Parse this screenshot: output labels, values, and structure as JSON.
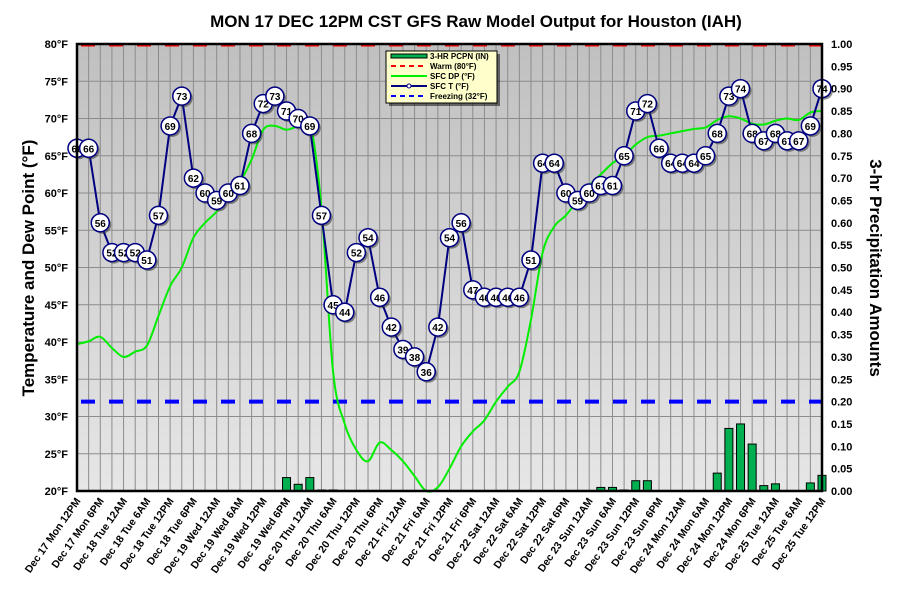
{
  "chart_data": {
    "type": "line",
    "title": "MON 17 DEC 12PM CST GFS Raw Model Output for Houston (IAH)",
    "ylabel": "Temperature and Dew Point (°F)",
    "y2label": "3-hr Precipitation Amounts",
    "ylim": [
      20,
      80
    ],
    "y2lim": [
      0,
      1
    ],
    "grid": true,
    "legend_position": "top-center",
    "yticks": [
      "20°F",
      "25°F",
      "30°F",
      "35°F",
      "40°F",
      "45°F",
      "50°F",
      "55°F",
      "60°F",
      "65°F",
      "70°F",
      "75°F",
      "80°F"
    ],
    "y2ticks": [
      "0.00",
      "0.05",
      "0.10",
      "0.15",
      "0.20",
      "0.25",
      "0.30",
      "0.35",
      "0.40",
      "0.45",
      "0.50",
      "0.55",
      "0.60",
      "0.65",
      "0.70",
      "0.75",
      "0.80",
      "0.85",
      "0.90",
      "0.95",
      "1.00"
    ],
    "xticks": [
      "Dec 17 Mon 12PM",
      "Dec 17 Mon 6PM",
      "Dec 18 Tue 12AM",
      "Dec 18 Tue 6AM",
      "Dec 18 Tue 12PM",
      "Dec 18 Tue 6PM",
      "Dec 19 Wed 12AM",
      "Dec 19 Wed 6AM",
      "Dec 19 Wed 12PM",
      "Dec 19 Wed 6PM",
      "Dec 20 Thu 12AM",
      "Dec 20 Thu 6AM",
      "Dec 20 Thu 12PM",
      "Dec 20 Thu 6PM",
      "Dec 21 Fri 12AM",
      "Dec 21 Fri 6AM",
      "Dec 21 Fri 12PM",
      "Dec 21 Fri 6PM",
      "Dec 22 Sat 12AM",
      "Dec 22 Sat 6AM",
      "Dec 22 Sat 12PM",
      "Dec 22 Sat 6PM",
      "Dec 23 Sun 12AM",
      "Dec 23 Sun 6AM",
      "Dec 23 Sun 12PM",
      "Dec 23 Sun 6PM",
      "Dec 24 Mon 12AM",
      "Dec 24 Mon 6AM",
      "Dec 24 Mon 12PM",
      "Dec 24 Mon 6PM",
      "Dec 25 Tue 12AM",
      "Dec 25 Tue 6AM",
      "Dec 25 Tue 12PM"
    ],
    "legend": [
      "3-HR PCPN (IN)",
      "Warm (80°F)",
      "SFC DP (°F)",
      "SFC T (°F)",
      "Freezing (32°F)"
    ],
    "series": [
      {
        "name": "SFC T (°F)",
        "color": "#000080",
        "values": [
          66,
          66,
          56,
          52,
          52,
          52,
          51,
          57,
          69,
          73,
          62,
          60,
          59,
          60,
          61,
          68,
          72,
          73,
          71,
          70,
          69,
          57,
          45,
          44,
          52,
          54,
          46,
          42,
          39,
          38,
          36,
          42,
          54,
          56,
          47,
          46,
          46,
          46,
          46,
          51,
          64,
          64,
          60,
          59,
          60,
          61,
          61,
          65,
          71,
          72,
          66,
          64,
          64,
          64,
          65,
          68,
          73,
          74,
          68,
          67,
          68,
          67,
          67,
          69,
          74
        ]
      },
      {
        "name": "SFC DP (°F)",
        "color": "#00ee00",
        "values": [
          39.7,
          40.1,
          40.7,
          39.2,
          38.0,
          38.7,
          39.5,
          43.5,
          47.5,
          50.0,
          54.0,
          56.0,
          57.5,
          59.5,
          61.5,
          64.5,
          68.5,
          69.0,
          68.5,
          69.0,
          69.5,
          58.0,
          36.0,
          29.0,
          25.5,
          24.0,
          26.5,
          25.5,
          24.0,
          22.0,
          20.0,
          20.5,
          23.0,
          26.0,
          28.0,
          29.5,
          32.0,
          34.0,
          36.0,
          43.0,
          52.0,
          55.5,
          57.0,
          59.0,
          61.0,
          62.5,
          64.0,
          65.0,
          66.5,
          67.5,
          67.7,
          68.0,
          68.3,
          68.6,
          68.8,
          69.8,
          70.3,
          70.0,
          69.3,
          69.2,
          69.7,
          70.0,
          69.8,
          70.8,
          71.0
        ]
      },
      {
        "name": "3-HR PCPN (IN)",
        "color": "#00b050",
        "values": [
          0,
          0,
          0,
          0,
          0,
          0,
          0,
          0,
          0,
          0,
          0,
          0,
          0,
          0,
          0,
          0,
          0,
          0,
          0.03,
          0.015,
          0.03,
          0.002,
          0.002,
          0,
          0,
          0,
          0,
          0,
          0,
          0,
          0,
          0,
          0,
          0,
          0,
          0,
          0,
          0,
          0,
          0,
          0,
          0,
          0,
          0,
          0,
          0.008,
          0.008,
          0.002,
          0.023,
          0.023,
          0,
          0,
          0,
          0,
          0,
          0.04,
          0.14,
          0.15,
          0.105,
          0.012,
          0.016,
          0,
          0,
          0.018,
          0.035
        ]
      },
      {
        "name": "Warm (80°F)",
        "color": "#ff0000",
        "values": [
          80
        ]
      },
      {
        "name": "Freezing (32°F)",
        "color": "#0000ff",
        "values": [
          32
        ]
      }
    ]
  }
}
